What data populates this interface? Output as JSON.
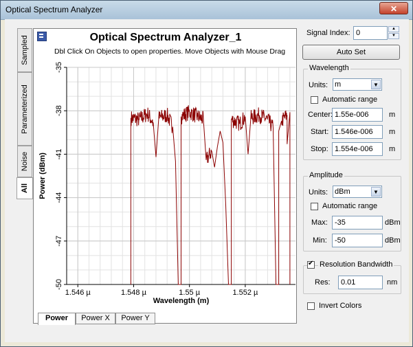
{
  "window": {
    "title": "Optical Spectrum Analyzer",
    "close_glyph": "✕"
  },
  "side_tabs": [
    "Sampled",
    "Parameterized",
    "Noise",
    "All"
  ],
  "bottom_tabs": [
    "Power",
    "Power X",
    "Power Y"
  ],
  "plot": {
    "title": "Optical Spectrum Analyzer_1",
    "hint": "Dbl Click On Objects to open properties.  Move Objects with Mouse Drag"
  },
  "chart_data": {
    "type": "line",
    "xlabel": "Wavelength (m)",
    "ylabel": "Power (dBm)",
    "xlim": [
      1.5456,
      1.5538
    ],
    "ylim": [
      -50,
      -35
    ],
    "x_ticks": [
      {
        "v": 1.546,
        "label": "1.546 µ"
      },
      {
        "v": 1.548,
        "label": "1.548 µ"
      },
      {
        "v": 1.55,
        "label": "1.55 µ"
      },
      {
        "v": 1.552,
        "label": "1.552 µ"
      }
    ],
    "y_ticks": [
      {
        "v": -35,
        "label": "-35"
      },
      {
        "v": -38,
        "label": "-38"
      },
      {
        "v": -41,
        "label": "-41"
      },
      {
        "v": -44,
        "label": "-44"
      },
      {
        "v": -47,
        "label": "-47"
      },
      {
        "v": -50,
        "label": "-50"
      }
    ],
    "grid": true,
    "line_color": "#8b0000",
    "series": [
      {
        "points": [
          [
            1.5479,
            -50
          ],
          [
            1.5479,
            -38.5
          ],
          [
            1.5482,
            -38.6
          ],
          [
            1.5485,
            -38.2
          ],
          [
            1.5487,
            -38.8
          ],
          [
            1.5488,
            -41.2
          ],
          [
            1.5489,
            -38.5
          ],
          [
            1.5492,
            -38.3
          ],
          [
            1.5494,
            -39.1
          ],
          [
            1.5495,
            -41.5
          ],
          [
            1.5496,
            -50
          ],
          [
            1.5497,
            -50
          ],
          [
            1.5497,
            -38.4
          ],
          [
            1.55,
            -38.1
          ],
          [
            1.5503,
            -38.4
          ],
          [
            1.5505,
            -38.6
          ],
          [
            1.5506,
            -41.4
          ],
          [
            1.5508,
            -40.8
          ],
          [
            1.5509,
            -41.9
          ],
          [
            1.551,
            -40.5
          ],
          [
            1.5511,
            -39.4
          ],
          [
            1.5512,
            -40.2
          ],
          [
            1.5513,
            -44.5
          ],
          [
            1.5514,
            -50
          ],
          [
            1.5515,
            -50
          ],
          [
            1.5515,
            -38.6
          ],
          [
            1.5518,
            -38.9
          ],
          [
            1.552,
            -38.4
          ],
          [
            1.5521,
            -41.0
          ],
          [
            1.5522,
            -38.5
          ],
          [
            1.5525,
            -38.3
          ],
          [
            1.5528,
            -38.6
          ],
          [
            1.553,
            -39.2
          ],
          [
            1.5531,
            -50
          ],
          [
            1.5532,
            -50
          ],
          [
            1.5532,
            -39.4
          ],
          [
            1.5533,
            -38.7
          ],
          [
            1.5535,
            -38.3
          ],
          [
            1.5535,
            -40.3
          ],
          [
            1.5536,
            -38.1
          ],
          [
            1.5536,
            -50
          ]
        ]
      }
    ]
  },
  "controls": {
    "signal_index_label": "Signal Index:",
    "signal_index_value": "0",
    "auto_set": "Auto Set",
    "wavelength": {
      "title": "Wavelength",
      "units_label": "Units:",
      "units_value": "m",
      "auto_range": "Automatic range",
      "center_label": "Center:",
      "center_value": "1.55e-006",
      "center_unit": "m",
      "start_label": "Start:",
      "start_value": "1.546e-006",
      "start_unit": "m",
      "stop_label": "Stop:",
      "stop_value": "1.554e-006",
      "stop_unit": "m"
    },
    "amplitude": {
      "title": "Amplitude",
      "units_label": "Units:",
      "units_value": "dBm",
      "auto_range": "Automatic range",
      "max_label": "Max:",
      "max_value": "-35",
      "max_unit": "dBm",
      "min_label": "Min:",
      "min_value": "-50",
      "min_unit": "dBm"
    },
    "resolution": {
      "title": "Resolution Bandwidth",
      "checked": true,
      "res_label": "Res:",
      "res_value": "0.01",
      "res_unit": "nm"
    },
    "invert_colors": "Invert Colors"
  }
}
